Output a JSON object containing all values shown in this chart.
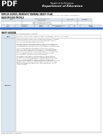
{
  "header_bg": "#1a1a1a",
  "pdf_text": "PDF",
  "agency_line1": "Republic of the Philippines",
  "agency_line2": "Department of Education",
  "doc_title": "DRMLES SCHOOL-INSERVICE TRAINING (INSET) PLAN",
  "doc_subtitle": "The DRMLES School-Based INSET Plan describes the details on school-based in-service training activities related to DRMLES implementation.",
  "section1_title": "BACKGROUND PROFILE",
  "blue_bar_color": "#4472c4",
  "section2_title": "INSET SESSION",
  "section2_subtitle": "List all content areas/topics/sessions/programs for training 2023:",
  "topic_label": "Topic",
  "topic_content": "Continuing Learning Activities: Strategies for Integrating School-wide/Community in your Classroom",
  "rationale_label": "Rationale",
  "footer_text": "School-Based INSET Plan, School Form 1",
  "page_num": "2",
  "bg_color": "#ffffff",
  "header_row_bg": "#dce6f1",
  "session_label_bg": "#dce6f1",
  "table_border_color": "#aaaaaa",
  "text_color": "#222222",
  "muted_text": "#555555"
}
